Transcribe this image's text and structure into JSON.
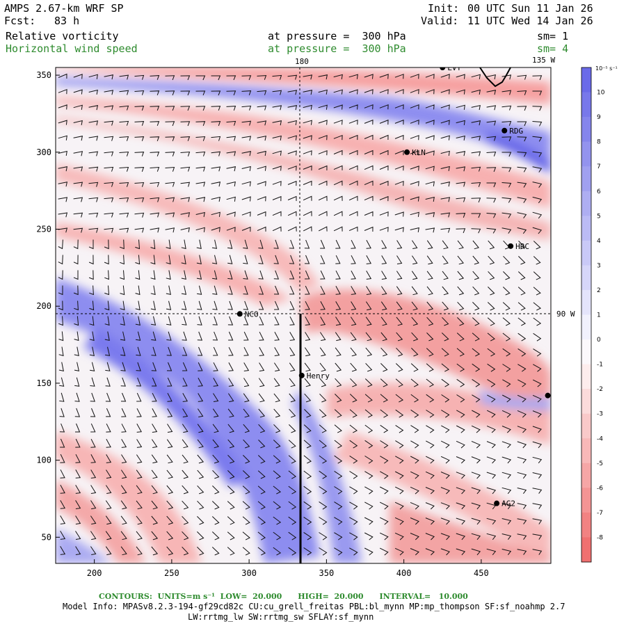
{
  "header": {
    "model_title": "AMPS 2.67-km WRF SP",
    "forecast_label": "Fcst:",
    "forecast_hours": "83 h",
    "init_label": "Init:",
    "init_value": "00 UTC Sun 11 Jan 26",
    "valid_label": "Valid:",
    "valid_value": "11 UTC Wed 14 Jan 26",
    "field1_name": "Relative vorticity",
    "field1_level": "at pressure =  300 hPa",
    "field1_sm": "sm= 1",
    "field2_name": "Horizontal wind speed",
    "field2_level": "at pressure =  300 hPa",
    "field2_sm": "sm= 4"
  },
  "map": {
    "x_ticks": [
      200,
      250,
      300,
      350,
      400,
      450
    ],
    "y_ticks": [
      50,
      100,
      150,
      200,
      250,
      300,
      350
    ],
    "x_range": [
      175,
      495
    ],
    "y_range": [
      33,
      355
    ],
    "meridian_label_top": "180",
    "meridian_label_top_right": "135 W",
    "meridian_label_right": "90 W",
    "stations": [
      {
        "name": "LVT",
        "x": 425,
        "y": 355
      },
      {
        "name": "RDG",
        "x": 465,
        "y": 314
      },
      {
        "name": "KLN",
        "x": 402,
        "y": 300
      },
      {
        "name": "HRC",
        "x": 469,
        "y": 239
      },
      {
        "name": "NCO",
        "x": 294,
        "y": 195
      },
      {
        "name": "Henry",
        "x": 334,
        "y": 155
      },
      {
        "name": "",
        "x": 493,
        "y": 142
      },
      {
        "name": "AG2",
        "x": 460,
        "y": 72
      }
    ],
    "colors": {
      "negative": "#f07070",
      "positive": "#6a6ae8",
      "station": "#000000"
    }
  },
  "colorbar": {
    "unit_label": "10⁻⁵ s⁻¹",
    "levels": [
      10,
      9,
      8,
      7,
      6,
      5,
      4,
      3,
      2,
      1,
      0,
      -1,
      -2,
      -3,
      -4,
      -5,
      -6,
      -7,
      -8
    ]
  },
  "footer": {
    "contours_line": "CONTOURS:  UNITS=m s⁻¹  LOW=  20.000      HIGH=  20.000      INTERVAL=   10.000",
    "model_info_line1": "Model Info: MPASv8.2.3-194-gf29cd82c CU:cu_grell_freitas PBL:bl_mynn MP:mp_thompson SF:sf_noahmp 2.7",
    "model_info_line2": "LW:rrtmg_lw SW:rrtmg_sw SFLAY:sf_mynn"
  }
}
